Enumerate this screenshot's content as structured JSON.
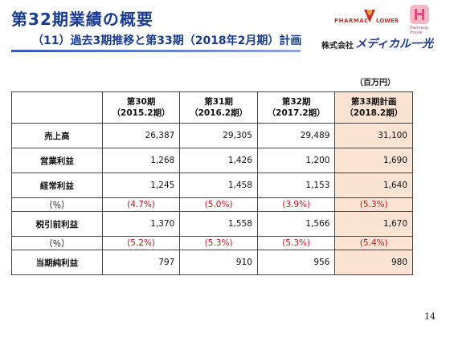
{
  "header": {
    "title": "第32期業績の概要",
    "subtitle": "（11）過去3期推移と第33期（2018年2月期）計画"
  },
  "logo": {
    "pharmac": "PHARMAC",
    "lower": "LOWER",
    "harmony": "Harmony House",
    "company_prefix": "株式会社",
    "company_name": "メディカル一光"
  },
  "unit": "（百万円）",
  "table": {
    "columns": [
      {
        "line1": "第30期",
        "line2": "（2015.2期）"
      },
      {
        "line1": "第31期",
        "line2": "（2016.2期）"
      },
      {
        "line1": "第32期",
        "line2": "（2017.2期）"
      },
      {
        "line1": "第33期計画",
        "line2": "（2018.2期）"
      }
    ],
    "rows": [
      {
        "label": "売上高",
        "values": [
          "26,387",
          "29,305",
          "29,489",
          "31,100"
        ]
      },
      {
        "label": "営業利益",
        "values": [
          "1,268",
          "1,426",
          "1,200",
          "1,690"
        ]
      },
      {
        "label": "経常利益",
        "values": [
          "1,245",
          "1,458",
          "1,153",
          "1,640"
        ]
      },
      {
        "label": "（％）",
        "values": [
          "(4.7%)",
          "(5.0%)",
          "(3.9%)",
          "(5.3%)"
        ]
      },
      {
        "label": "税引前利益",
        "values": [
          "1,370",
          "1,558",
          "1,566",
          "1,670"
        ]
      },
      {
        "label": "（％）",
        "values": [
          "(5.2%)",
          "(5.3%)",
          "(5.3%)",
          "(5.4%)"
        ]
      },
      {
        "label": "当期純利益",
        "values": [
          "797",
          "910",
          "956",
          "980"
        ]
      }
    ]
  },
  "page_number": "14",
  "colors": {
    "title": "#1a3c8f",
    "highlight_column": "#fbe3d3",
    "percent_text": "#c0181c"
  }
}
